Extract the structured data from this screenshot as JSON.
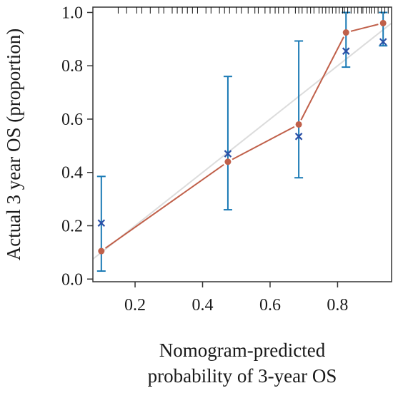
{
  "chart_data": {
    "type": "scatter",
    "title": "",
    "xlabel_lines": [
      "Nomogram-predicted",
      "probability of 3-year OS"
    ],
    "ylabel": "Actual 3 year OS (proportion)",
    "xlim": [
      0.075,
      0.96
    ],
    "ylim": [
      -0.01,
      1.02
    ],
    "x_ticks": [
      0.2,
      0.4,
      0.6,
      0.8
    ],
    "x_tick_labels": [
      "0.2",
      "0.4",
      "0.6",
      "0.8"
    ],
    "y_ticks": [
      0.0,
      0.2,
      0.4,
      0.6,
      0.8,
      1.0
    ],
    "y_tick_labels": [
      "0.0",
      "0.2",
      "0.4",
      "0.6",
      "0.8",
      "1.0"
    ],
    "grid": false,
    "legend": "none",
    "series": [
      {
        "kind": "points-with-error-bars",
        "marker": "x",
        "color": "#2a4fa6",
        "error_color": "#1a7ab5",
        "x": [
          0.1,
          0.475,
          0.685,
          0.825,
          0.935
        ],
        "y": [
          0.21,
          0.47,
          0.535,
          0.855,
          0.89
        ],
        "lower": [
          0.03,
          0.26,
          0.38,
          0.795,
          0.875
        ],
        "upper": [
          0.385,
          0.76,
          0.893,
          1.0,
          1.0
        ]
      },
      {
        "kind": "line-with-points",
        "marker": "o",
        "color": "#c0604a",
        "x": [
          0.1,
          0.475,
          0.685,
          0.825,
          0.935
        ],
        "y": [
          0.105,
          0.44,
          0.58,
          0.925,
          0.96
        ]
      },
      {
        "kind": "ideal-line",
        "color": "#dcdcdc",
        "x": [
          0.075,
          0.96
        ],
        "y": [
          0.075,
          0.96
        ]
      }
    ],
    "rug": {
      "color": "#111111",
      "x": [
        0.15,
        0.175,
        0.205,
        0.22,
        0.245,
        0.27,
        0.285,
        0.31,
        0.325,
        0.34,
        0.355,
        0.37,
        0.385,
        0.41,
        0.425,
        0.45,
        0.465,
        0.48,
        0.5,
        0.515,
        0.535,
        0.555,
        0.565,
        0.585,
        0.6,
        0.615,
        0.625,
        0.64,
        0.655,
        0.675,
        0.685,
        0.695,
        0.71,
        0.72,
        0.73,
        0.745,
        0.755,
        0.765,
        0.775,
        0.785,
        0.795,
        0.805,
        0.815,
        0.82,
        0.83,
        0.84,
        0.85,
        0.86,
        0.87,
        0.875,
        0.885,
        0.895,
        0.9,
        0.91,
        0.92,
        0.93,
        0.94,
        0.95
      ]
    }
  }
}
